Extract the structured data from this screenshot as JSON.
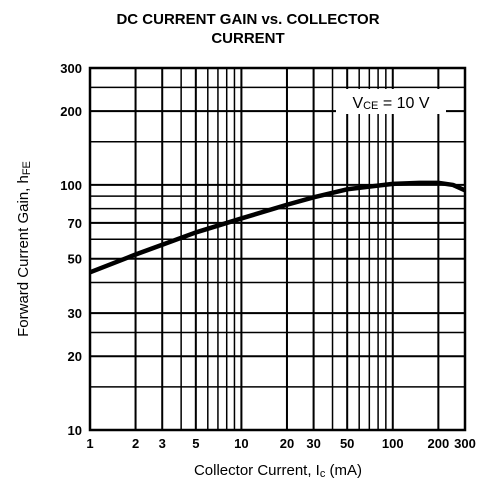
{
  "chart_data": {
    "type": "line",
    "title_lines": [
      "DC CURRENT GAIN vs. COLLECTOR",
      "CURRENT"
    ],
    "x_label": [
      "Collector Current, I",
      "c",
      " (mA)"
    ],
    "y_label": [
      "Forward Current Gain, h",
      "FE"
    ],
    "annotation": [
      "V",
      "CE",
      " = 10 V"
    ],
    "x": [
      1,
      2,
      3,
      5,
      10,
      20,
      30,
      50,
      100,
      150,
      200,
      250,
      300
    ],
    "series": [
      {
        "color": "#000000",
        "values": [
          44,
          52,
          57,
          64,
          73,
          83,
          89,
          96,
          101,
          102,
          102,
          100,
          95
        ]
      }
    ],
    "xlim": [
      1,
      300
    ],
    "ylim": [
      10,
      300
    ],
    "xticks": [
      1,
      2,
      3,
      5,
      10,
      20,
      30,
      50,
      100,
      200,
      300
    ],
    "yticks": [
      10,
      20,
      30,
      50,
      70,
      100,
      200,
      300
    ],
    "xlog": true,
    "ylog": true,
    "grid": true,
    "minor_grid": true
  }
}
